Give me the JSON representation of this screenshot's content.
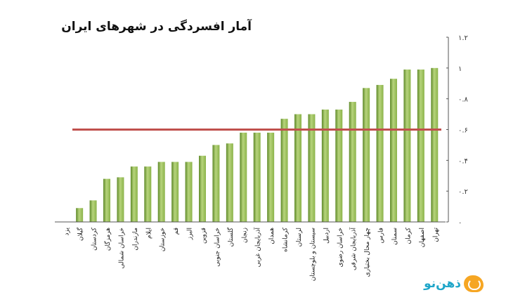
{
  "header": {
    "title": "آمار افسردگی در شهرهای ایران"
  },
  "logo": {
    "text": "ذهن‌نو",
    "icon": "brain-icon",
    "color": "#1fa6c9"
  },
  "colors": {
    "bar": "#8bb34a",
    "bar_light": "#b7d47c",
    "bar_dark": "#5f8a2a",
    "reference_line": "#c0504d",
    "axis": "#555555"
  },
  "chart_data": {
    "type": "bar",
    "title": "آمار افسردگی در شهرهای ایران",
    "xlabel": "",
    "ylabel": "",
    "ylim": [
      0,
      1.2
    ],
    "yticks": [
      0,
      0.2,
      0.4,
      0.6,
      0.8,
      1,
      1.2
    ],
    "ytick_labels": [
      "۰",
      "۰.۲",
      "۰.۴",
      "۰.۶",
      "۰.۸",
      "۱",
      "۱.۲"
    ],
    "y_axis_side": "right",
    "grid": false,
    "legend": "none",
    "categories": [
      "یزد",
      "گیلان",
      "کردستان",
      "هرمزگان",
      "خراسان شمالی",
      "مازندران",
      "ایلام",
      "خوزستان",
      "قم",
      "البرز",
      "قزوین",
      "خراسان جنوبی",
      "گلستان",
      "زنجان",
      "آذربایجان غربی",
      "همدان",
      "کرمانشاه",
      "لرستان",
      "سیستان و بلوچستان",
      "اردبیل",
      "خراسان رضوی",
      "آذربایجان شرقی",
      "چهار محال بختیاری",
      "فارس",
      "سمنان",
      "کرمان",
      "اصفهان",
      "تهران"
    ],
    "values": [
      0.0,
      0.09,
      0.14,
      0.28,
      0.29,
      0.36,
      0.36,
      0.39,
      0.39,
      0.39,
      0.43,
      0.5,
      0.51,
      0.58,
      0.58,
      0.58,
      0.67,
      0.7,
      0.7,
      0.73,
      0.73,
      0.78,
      0.87,
      0.89,
      0.93,
      0.99,
      0.99,
      1.0
    ],
    "reference_line": 0.6
  }
}
